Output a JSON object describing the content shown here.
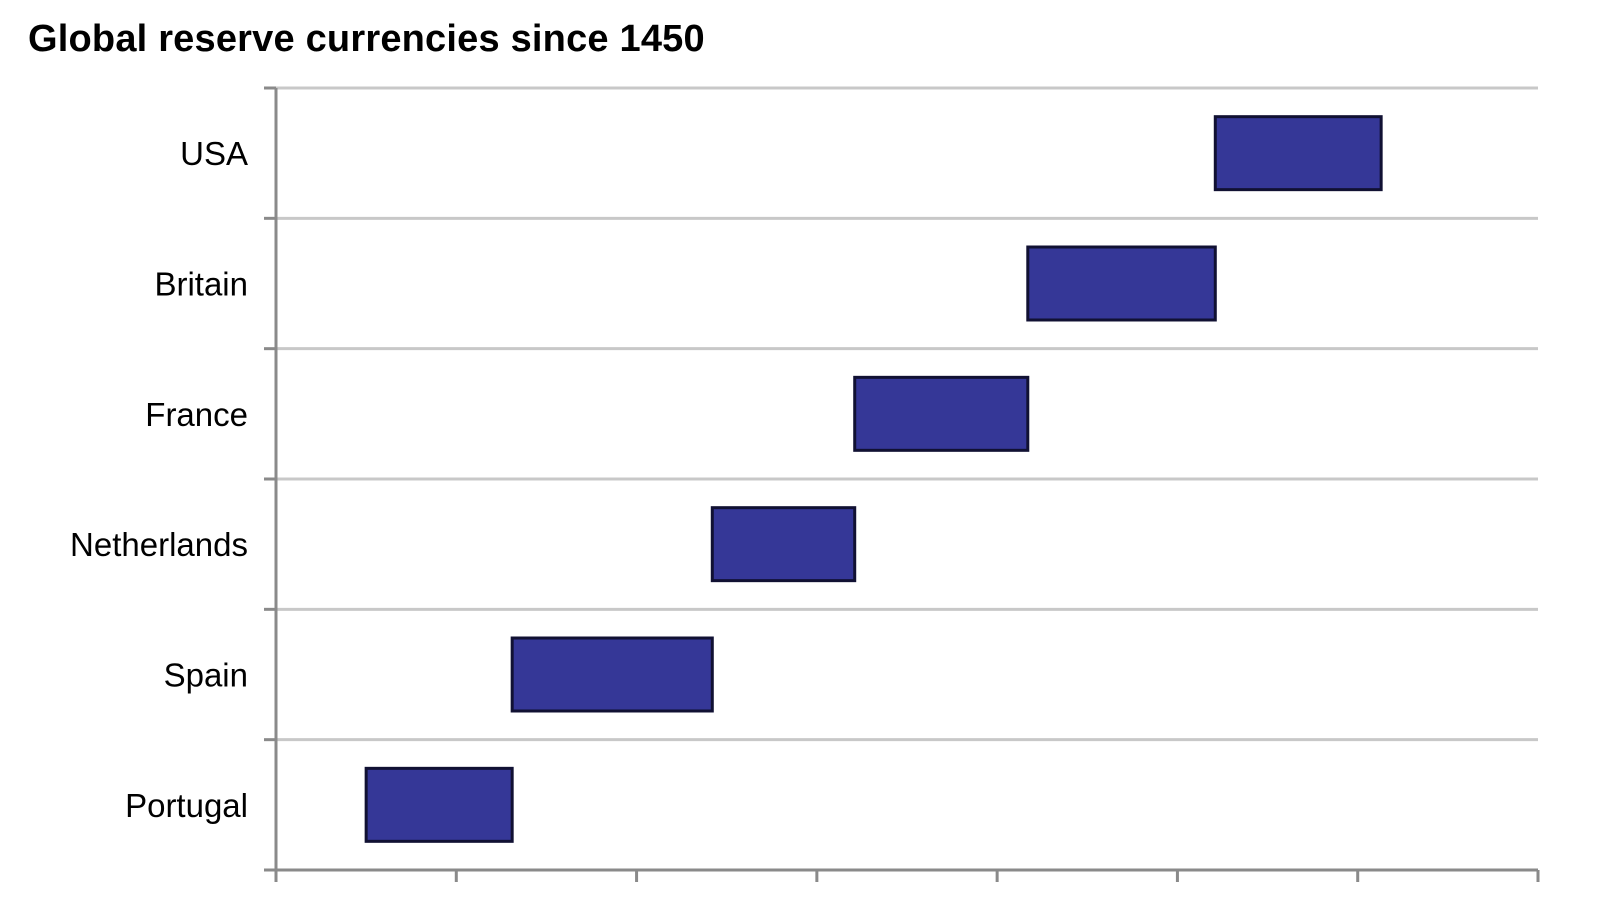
{
  "chart_data": {
    "type": "bar",
    "subtype": "floating-horizontal-timeline",
    "title": "Global reserve currencies since 1450",
    "xlabel": "",
    "ylabel": "",
    "x_tick_labels_visible": false,
    "grid": "horizontal",
    "legend": "none",
    "colors": {
      "bar_fill": "#353797",
      "bar_stroke": "#111133",
      "gridline": "#c8c8c8",
      "axis": "#8a8a8a"
    },
    "categories": [
      "USA",
      "Britain",
      "France",
      "Netherlands",
      "Spain",
      "Portugal"
    ],
    "xlim": [
      1400,
      2100
    ],
    "x_ticks": [
      1400,
      1500,
      1600,
      1700,
      1800,
      1900,
      2000,
      2100
    ],
    "bars": [
      {
        "category": "USA",
        "start": 1921,
        "end": 2013
      },
      {
        "category": "Britain",
        "start": 1817,
        "end": 1921
      },
      {
        "category": "France",
        "start": 1721,
        "end": 1817
      },
      {
        "category": "Netherlands",
        "start": 1642,
        "end": 1721
      },
      {
        "category": "Spain",
        "start": 1531,
        "end": 1642
      },
      {
        "category": "Portugal",
        "start": 1450,
        "end": 1531
      }
    ]
  }
}
